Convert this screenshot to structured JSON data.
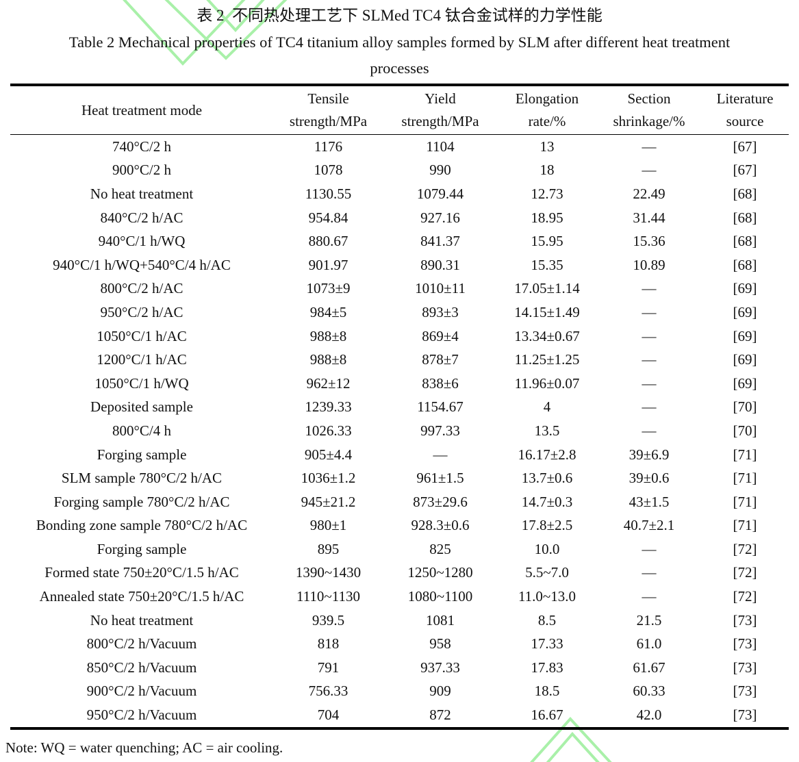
{
  "titles": {
    "chinese": "表 2  不同热处理工艺下 SLMed TC4 钛合金试样的力学性能",
    "english_line1": "Table 2 Mechanical properties of TC4 titanium alloy samples formed by SLM after different heat treatment",
    "english_line2": "processes"
  },
  "table": {
    "columns": [
      {
        "key": "mode",
        "lines": [
          "Heat treatment mode"
        ]
      },
      {
        "key": "tensile",
        "lines": [
          "Tensile",
          "strength/MPa"
        ]
      },
      {
        "key": "yield",
        "lines": [
          "Yield",
          "strength/MPa"
        ]
      },
      {
        "key": "elongation",
        "lines": [
          "Elongation",
          "rate/%"
        ]
      },
      {
        "key": "shrinkage",
        "lines": [
          "Section",
          "shrinkage/%"
        ]
      },
      {
        "key": "source",
        "lines": [
          "Literature",
          "source"
        ]
      }
    ],
    "rows": [
      [
        "740°C/2 h",
        "1176",
        "1104",
        "13",
        "—",
        "[67]"
      ],
      [
        "900°C/2 h",
        "1078",
        "990",
        "18",
        "—",
        "[67]"
      ],
      [
        "No heat treatment",
        "1130.55",
        "1079.44",
        "12.73",
        "22.49",
        "[68]"
      ],
      [
        "840°C/2 h/AC",
        "954.84",
        "927.16",
        "18.95",
        "31.44",
        "[68]"
      ],
      [
        "940°C/1 h/WQ",
        "880.67",
        "841.37",
        "15.95",
        "15.36",
        "[68]"
      ],
      [
        "940°C/1 h/WQ+540°C/4 h/AC",
        "901.97",
        "890.31",
        "15.35",
        "10.89",
        "[68]"
      ],
      [
        "800°C/2 h/AC",
        "1073±9",
        "1010±11",
        "17.05±1.14",
        "—",
        "[69]"
      ],
      [
        "950°C/2 h/AC",
        "984±5",
        "893±3",
        "14.15±1.49",
        "—",
        "[69]"
      ],
      [
        "1050°C/1 h/AC",
        "988±8",
        "869±4",
        "13.34±0.67",
        "—",
        "[69]"
      ],
      [
        "1200°C/1 h/AC",
        "988±8",
        "878±7",
        "11.25±1.25",
        "—",
        "[69]"
      ],
      [
        "1050°C/1 h/WQ",
        "962±12",
        "838±6",
        "11.96±0.07",
        "—",
        "[69]"
      ],
      [
        "Deposited sample",
        "1239.33",
        "1154.67",
        "4",
        "—",
        "[70]"
      ],
      [
        "800°C/4 h",
        "1026.33",
        "997.33",
        "13.5",
        "—",
        "[70]"
      ],
      [
        "Forging sample",
        "905±4.4",
        "—",
        "16.17±2.8",
        "39±6.9",
        "[71]"
      ],
      [
        "SLM sample 780°C/2 h/AC",
        "1036±1.2",
        "961±1.5",
        "13.7±0.6",
        "39±0.6",
        "[71]"
      ],
      [
        "Forging sample 780°C/2 h/AC",
        "945±21.2",
        "873±29.6",
        "14.7±0.3",
        "43±1.5",
        "[71]"
      ],
      [
        "Bonding zone sample 780°C/2 h/AC",
        "980±1",
        "928.3±0.6",
        "17.8±2.5",
        "40.7±2.1",
        "[71]"
      ],
      [
        "Forging sample",
        "895",
        "825",
        "10.0",
        "—",
        "[72]"
      ],
      [
        "Formed state 750±20°C/1.5 h/AC",
        "1390~1430",
        "1250~1280",
        "5.5~7.0",
        "—",
        "[72]"
      ],
      [
        "Annealed state 750±20°C/1.5 h/AC",
        "1110~1130",
        "1080~1100",
        "11.0~13.0",
        "—",
        "[72]"
      ],
      [
        "No heat treatment",
        "939.5",
        "1081",
        "8.5",
        "21.5",
        "[73]"
      ],
      [
        "800°C/2 h/Vacuum",
        "818",
        "958",
        "17.33",
        "61.0",
        "[73]"
      ],
      [
        "850°C/2 h/Vacuum",
        "791",
        "937.33",
        "17.83",
        "61.67",
        "[73]"
      ],
      [
        "900°C/2 h/Vacuum",
        "756.33",
        "909",
        "18.5",
        "60.33",
        "[73]"
      ],
      [
        "950°C/2 h/Vacuum",
        "704",
        "872",
        "16.67",
        "42.0",
        "[73]"
      ]
    ]
  },
  "note": "Note: WQ = water quenching; AC = air cooling.",
  "watermark": {
    "color": "#a9f0a9"
  }
}
